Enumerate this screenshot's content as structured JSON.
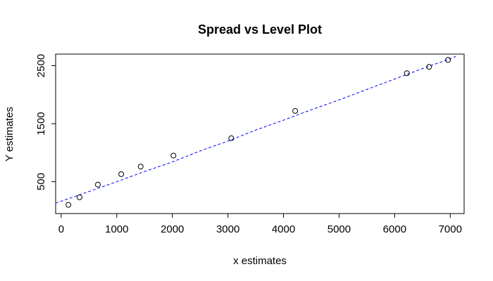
{
  "chart_data": {
    "type": "scatter",
    "title": "Spread vs Level Plot",
    "xlabel": "x estimates",
    "ylabel": "Y estimates",
    "xlim": [
      -100,
      7250
    ],
    "ylim": [
      -50,
      2700
    ],
    "xticks": [
      0,
      1000,
      2000,
      3000,
      4000,
      5000,
      6000,
      7000
    ],
    "yticks": [
      500,
      1500,
      2500
    ],
    "points": [
      {
        "x": 130,
        "y": 100
      },
      {
        "x": 330,
        "y": 230
      },
      {
        "x": 660,
        "y": 450
      },
      {
        "x": 1080,
        "y": 630
      },
      {
        "x": 1430,
        "y": 760
      },
      {
        "x": 2020,
        "y": 950
      },
      {
        "x": 3060,
        "y": 1250
      },
      {
        "x": 4210,
        "y": 1720
      },
      {
        "x": 6220,
        "y": 2370
      },
      {
        "x": 6620,
        "y": 2480
      },
      {
        "x": 6960,
        "y": 2600
      }
    ],
    "fit_line": {
      "style": "dashed",
      "color": "#0000ff",
      "x": [
        -100,
        500,
        1000,
        1500,
        2000,
        2500,
        3000,
        3500,
        4000,
        4500,
        5000,
        5500,
        6000,
        6500,
        7000,
        7100
      ],
      "y": [
        130,
        330,
        500,
        675,
        840,
        1030,
        1200,
        1390,
        1560,
        1740,
        1910,
        2090,
        2270,
        2450,
        2620,
        2660
      ]
    },
    "point_color": "#000000",
    "grid": false
  }
}
